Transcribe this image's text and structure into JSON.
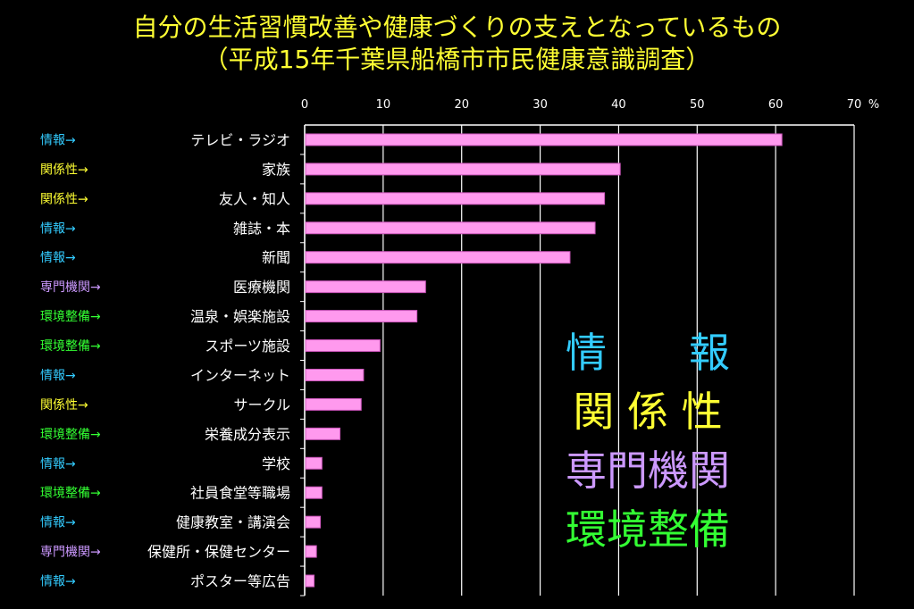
{
  "title_line1": "自分の生活習慣改善や健康づくりの支えとなっているもの",
  "title_line2": "（平成15年千葉県船橋市市民健康意識調査）",
  "colors": {
    "background": "#000000",
    "title": "#ffff33",
    "bar_fill": "#ff99ee",
    "bar_stroke": "#cc55bb",
    "情報": "#33ccff",
    "関係性": "#ffff33",
    "専門機関": "#cc99ff",
    "環境整備": "#33ff33"
  },
  "legend": [
    {
      "label": "情　　報",
      "group": "情報"
    },
    {
      "label": "関 係 性",
      "group": "関係性"
    },
    {
      "label": "専門機関",
      "group": "専門機関"
    },
    {
      "label": "環境整備",
      "group": "環境整備"
    }
  ],
  "chart_data": {
    "type": "bar",
    "orientation": "horizontal",
    "unit": "%",
    "xlim": [
      0,
      70
    ],
    "xticks": [
      0,
      10,
      20,
      30,
      40,
      50,
      60,
      70
    ],
    "grid": true,
    "categories": [
      "テレビ・ラジオ",
      "家族",
      "友人・知人",
      "雑誌・本",
      "新聞",
      "医療機関",
      "温泉・娯楽施設",
      "スポーツ施設",
      "インターネット",
      "サークル",
      "栄養成分表示",
      "学校",
      "社員食堂等職場",
      "健康教室・講演会",
      "保健所・保健センター",
      "ポスター等広告"
    ],
    "values": [
      60.8,
      40.2,
      38.2,
      37.0,
      33.8,
      15.4,
      14.3,
      9.6,
      7.5,
      7.2,
      4.5,
      2.2,
      2.2,
      2.0,
      1.5,
      1.2
    ],
    "tags": [
      "情報→",
      "関係性→",
      "関係性→",
      "情報→",
      "情報→",
      "専門機関→",
      "環境整備→",
      "環境整備→",
      "情報→",
      "関係性→",
      "環境整備→",
      "情報→",
      "環境整備→",
      "情報→",
      "専門機関→",
      "情報→"
    ],
    "tag_groups": [
      "情報",
      "関係性",
      "関係性",
      "情報",
      "情報",
      "専門機関",
      "環境整備",
      "環境整備",
      "情報",
      "関係性",
      "環境整備",
      "情報",
      "環境整備",
      "情報",
      "専門機関",
      "情報"
    ]
  }
}
